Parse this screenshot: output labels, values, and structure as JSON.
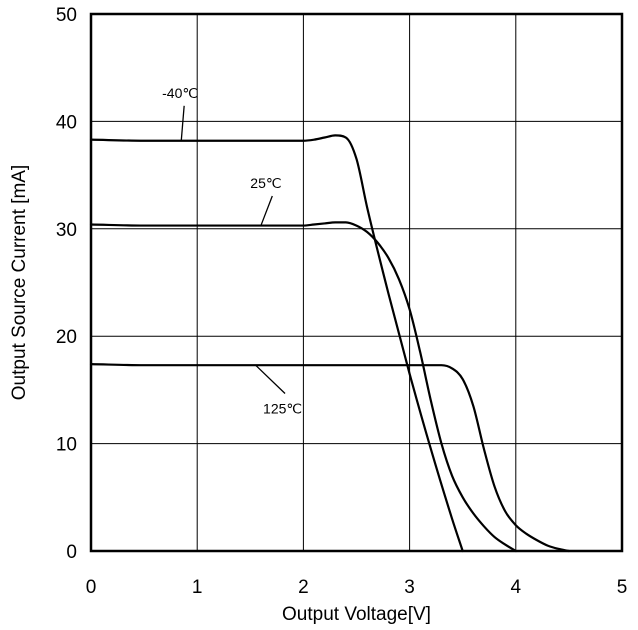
{
  "chart_data": {
    "type": "line",
    "title": "",
    "xlabel": "Output Voltage[V]",
    "ylabel": "Output Source Current [mA]",
    "xlim": [
      0,
      5
    ],
    "ylim": [
      0,
      50
    ],
    "xticks": [
      0,
      1,
      2,
      3,
      4,
      5
    ],
    "yticks": [
      0,
      10,
      20,
      30,
      40,
      50
    ],
    "grid": true,
    "legend": "none",
    "series": [
      {
        "name": "-40℃",
        "x": [
          0,
          0.5,
          1.0,
          1.5,
          2.0,
          2.1,
          2.2,
          2.3,
          2.4,
          2.5,
          2.6,
          2.8,
          3.0,
          3.2,
          3.4,
          3.5
        ],
        "y": [
          38.3,
          38.2,
          38.2,
          38.2,
          38.2,
          38.3,
          38.5,
          38.7,
          38.5,
          36.5,
          32.0,
          24.0,
          16.5,
          9.5,
          3.0,
          0
        ]
      },
      {
        "name": "25℃",
        "x": [
          0,
          0.5,
          1.0,
          1.5,
          2.0,
          2.1,
          2.2,
          2.3,
          2.4,
          2.5,
          2.6,
          2.7,
          2.8,
          2.9,
          3.0,
          3.1,
          3.2,
          3.3,
          3.4,
          3.5,
          3.6,
          3.7,
          3.8,
          3.9,
          4.0
        ],
        "y": [
          30.4,
          30.3,
          30.3,
          30.3,
          30.3,
          30.4,
          30.5,
          30.6,
          30.6,
          30.3,
          29.7,
          28.7,
          27.3,
          25.3,
          22.5,
          18.5,
          14.0,
          10.0,
          7.0,
          5.0,
          3.5,
          2.3,
          1.3,
          0.6,
          0
        ]
      },
      {
        "name": "125℃",
        "x": [
          0,
          0.5,
          1.0,
          1.5,
          2.0,
          2.5,
          3.0,
          3.2,
          3.3,
          3.4,
          3.5,
          3.6,
          3.7,
          3.8,
          3.9,
          4.0,
          4.1,
          4.2,
          4.3,
          4.4,
          4.5
        ],
        "y": [
          17.4,
          17.3,
          17.3,
          17.3,
          17.3,
          17.3,
          17.3,
          17.3,
          17.3,
          17.0,
          16.0,
          13.5,
          9.5,
          6.0,
          3.7,
          2.4,
          1.6,
          1.0,
          0.5,
          0.2,
          0
        ]
      }
    ],
    "annotations": [
      {
        "text": "-40℃",
        "series": 0,
        "at_x": 0.85,
        "label_x": 0.67,
        "label_y": 42.2
      },
      {
        "text": "25℃",
        "series": 1,
        "at_x": 1.6,
        "label_x": 1.5,
        "label_y": 33.8
      },
      {
        "text": "125℃",
        "series": 2,
        "at_x": 1.55,
        "label_x": 1.62,
        "label_y": 12.8
      }
    ]
  }
}
